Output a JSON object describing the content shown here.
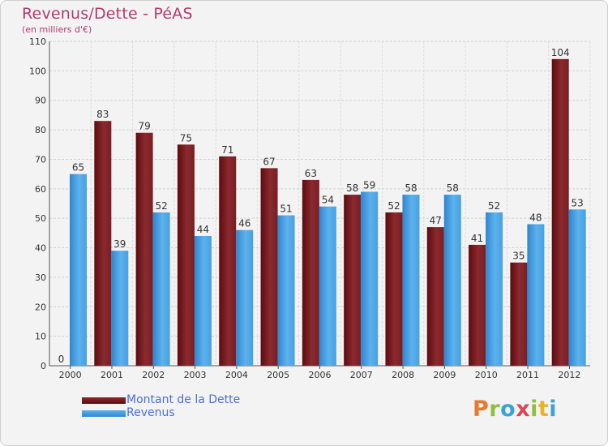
{
  "title": "Revenus/Dette - PéAS",
  "subtitle": "(en milliers d'€)",
  "legend": {
    "debt_label": "Montant de la Dette",
    "revenue_label": "Revenus"
  },
  "logo": {
    "text": "Proxiti",
    "letters": [
      "P",
      "r",
      "o",
      "x",
      "i",
      "t",
      "i"
    ],
    "colors": [
      "#e9792f",
      "#8fbf3c",
      "#3aa2d8",
      "#d9475a",
      "#8fbf3c",
      "#e9b22c",
      "#3aa2d8"
    ]
  },
  "colors": {
    "debt": "#7a1a1f",
    "revenue": "#3d9be0",
    "title": "#b23a6b",
    "legend_text": "#4a6fd8"
  },
  "chart_data": {
    "type": "bar",
    "title": "Revenus/Dette - PéAS",
    "subtitle": "(en milliers d'€)",
    "categories": [
      "2000",
      "2001",
      "2002",
      "2003",
      "2004",
      "2005",
      "2006",
      "2007",
      "2008",
      "2009",
      "2010",
      "2011",
      "2012"
    ],
    "series": [
      {
        "name": "Montant de la Dette",
        "values": [
          0,
          83,
          79,
          75,
          71,
          67,
          63,
          58,
          52,
          47,
          41,
          35,
          104
        ]
      },
      {
        "name": "Revenus",
        "values": [
          65,
          39,
          52,
          44,
          46,
          51,
          54,
          59,
          58,
          58,
          52,
          48,
          53
        ]
      }
    ],
    "ylim": [
      0,
      110
    ],
    "yticks": [
      0,
      10,
      20,
      30,
      40,
      50,
      60,
      70,
      80,
      90,
      100,
      110
    ],
    "grid": true,
    "legend": "bottom-left",
    "data_labels": true
  }
}
